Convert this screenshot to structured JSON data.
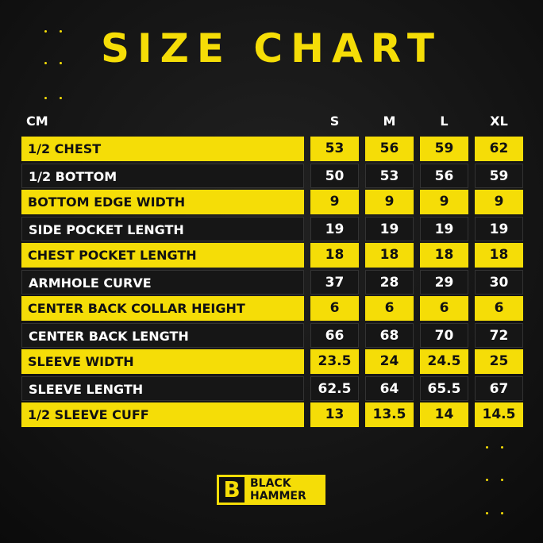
{
  "header": {
    "title": "SIZE CHART"
  },
  "table": {
    "columns": [
      "CM",
      "S",
      "M",
      "L",
      "XL"
    ],
    "rows": [
      [
        "1/2 CHEST",
        53,
        56,
        59,
        62
      ],
      [
        "1/2 BOTTOM",
        50,
        53,
        56,
        59
      ],
      [
        "BOTTOM EDGE WIDTH",
        9,
        9,
        9,
        9
      ],
      [
        "SIDE POCKET LENGTH",
        19,
        19,
        19,
        19
      ],
      [
        "CHEST POCKET LENGTH",
        18,
        18,
        18,
        18
      ],
      [
        "ARMHOLE CURVE",
        37,
        28,
        29,
        30
      ],
      [
        "CENTER BACK COLLAR HEIGHT",
        6,
        6,
        6,
        6
      ],
      [
        "CENTER BACK LENGTH",
        66,
        68,
        70,
        72
      ],
      [
        "SLEEVE WIDTH",
        23.5,
        24,
        24.5,
        25
      ],
      [
        "SLEEVE LENGTH",
        62.5,
        64,
        65.5,
        67
      ],
      [
        "1/2 SLEEVE CUFF",
        13,
        13.5,
        14,
        14.5
      ]
    ]
  },
  "logo": {
    "mark": "B",
    "lines": [
      "BLACK",
      "HAMMER"
    ]
  }
}
